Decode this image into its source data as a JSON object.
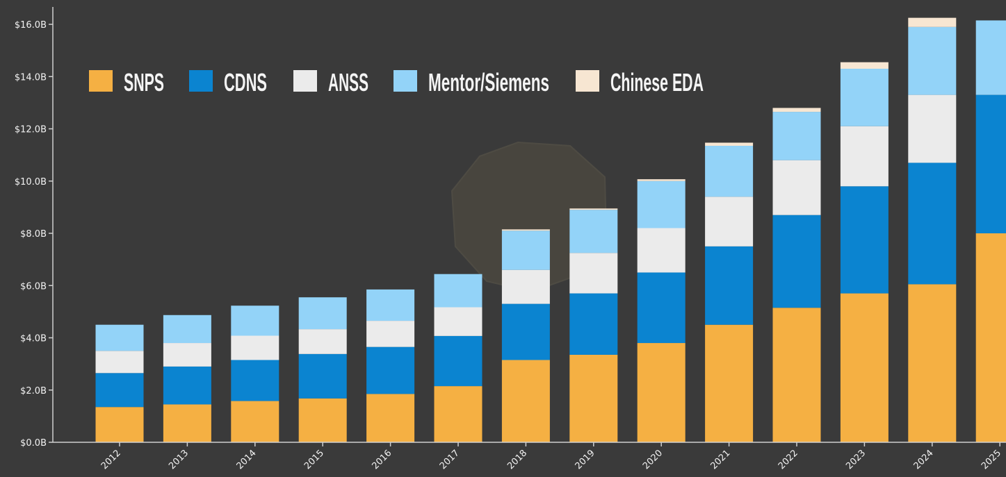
{
  "chart_data": {
    "type": "bar",
    "stacked": true,
    "categories": [
      "2012",
      "2013",
      "2014",
      "2015",
      "2016",
      "2017",
      "2018",
      "2019",
      "2020",
      "2021",
      "2022",
      "2023",
      "2024",
      "2025"
    ],
    "series": [
      {
        "name": "SNPS",
        "color": "#f5b043",
        "values": [
          1.35,
          1.45,
          1.58,
          1.68,
          1.85,
          2.15,
          3.15,
          3.35,
          3.8,
          4.5,
          5.15,
          5.7,
          6.05,
          8.0
        ]
      },
      {
        "name": "CDNS",
        "color": "#0b84d0",
        "values": [
          1.3,
          1.45,
          1.57,
          1.7,
          1.8,
          1.92,
          2.15,
          2.35,
          2.7,
          3.0,
          3.55,
          4.1,
          4.65,
          5.3
        ]
      },
      {
        "name": "ANSS",
        "color": "#ebebeb",
        "values": [
          0.85,
          0.9,
          0.93,
          0.95,
          1.0,
          1.1,
          1.3,
          1.55,
          1.7,
          1.9,
          2.1,
          2.3,
          2.6,
          0
        ]
      },
      {
        "name": "Mentor/Siemens",
        "color": "#93d3f8",
        "values": [
          1.0,
          1.07,
          1.15,
          1.22,
          1.2,
          1.27,
          1.5,
          1.65,
          1.8,
          1.95,
          1.85,
          2.2,
          2.6,
          2.85
        ]
      },
      {
        "name": "Chinese EDA",
        "color": "#f7e6d2",
        "values": [
          0,
          0,
          0,
          0,
          0,
          0,
          0.05,
          0.05,
          0.07,
          0.12,
          0.15,
          0.25,
          0.35,
          0
        ]
      }
    ],
    "yticks": [
      "$0.0B",
      "$2.0B",
      "$4.0B",
      "$6.0B",
      "$8.0B",
      "$10.0B",
      "$12.0B",
      "$14.0B",
      "$16.0B"
    ],
    "ylim": [
      0,
      16.4
    ],
    "legend_position": "top-left",
    "grid": false
  }
}
